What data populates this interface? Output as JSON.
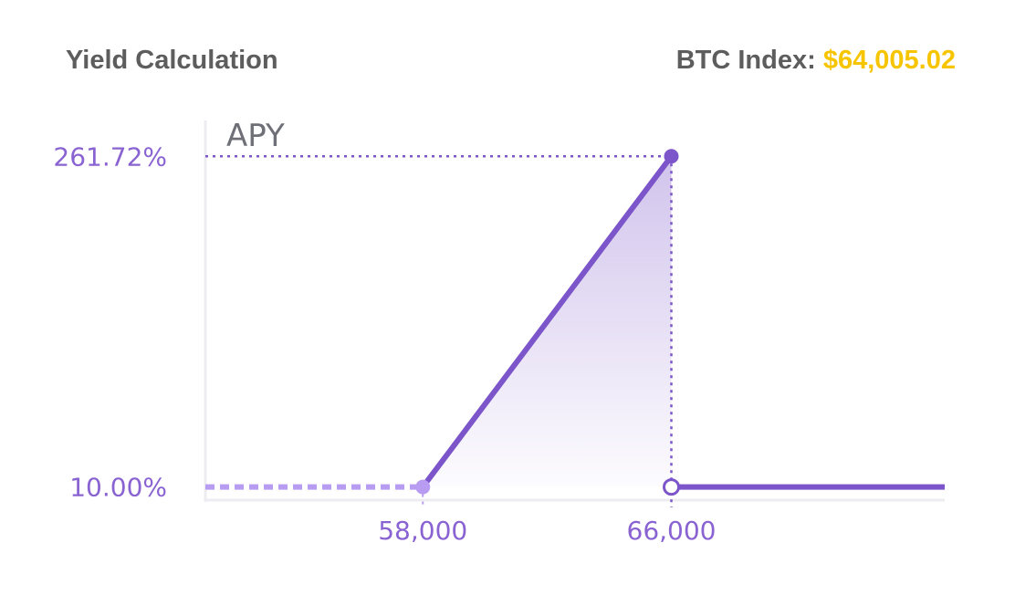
{
  "header": {
    "title": "Yield Calculation",
    "index_label": "BTC Index:",
    "index_value": "$64,005.02"
  },
  "colors": {
    "accent": "#7b55c9",
    "accent_light": "#b89cf1",
    "index_value": "#f6c500",
    "title_text": "#5d5d5d"
  },
  "chart_data": {
    "type": "line",
    "ylabel": "APY",
    "xlabel": "",
    "x_ticks": [
      "58,000",
      "66,000"
    ],
    "y_ticks": [
      "261.72%",
      "10.00%"
    ],
    "series": [
      {
        "points": [
          {
            "x": 58000,
            "y": 10.0
          },
          {
            "x": 66000,
            "y": 261.72
          },
          {
            "x": 66000,
            "y": 10.0
          },
          {
            "x": 74800,
            "y": 10.0
          }
        ]
      }
    ],
    "xlim": [
      51000,
      74800
    ],
    "ylim": [
      0,
      289
    ]
  }
}
